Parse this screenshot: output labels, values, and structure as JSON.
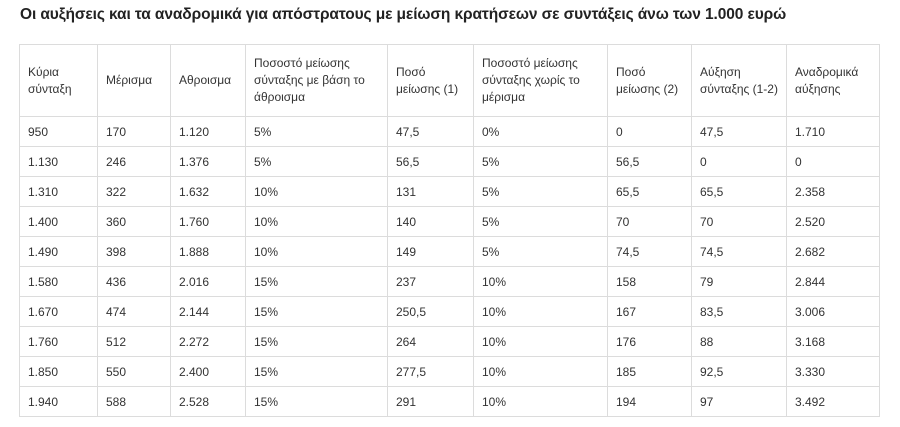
{
  "title": "Οι αυξήσεις και τα αναδρομικά για απόστρατους με μείωση κρατήσεων σε συντάξεις άνω των 1.000 ευρώ",
  "table": {
    "headers": [
      "Κύρια σύνταξη",
      "Μέρισμα",
      "Αθροισμα",
      "Ποσοστό μείωσης σύνταξης με βάση το άθροισμα",
      "Ποσό μείωσης (1)",
      "Ποσοστό μείωσης σύνταξης χωρίς το μέρισμα",
      "Ποσό μείωσης (2)",
      "Αύξηση σύνταξης (1-2)",
      "Αναδρομικά αύξησης"
    ],
    "rows": [
      [
        "950",
        "170",
        "1.120",
        "5%",
        "47,5",
        "0%",
        "0",
        "47,5",
        "1.710"
      ],
      [
        "1.130",
        "246",
        "1.376",
        "5%",
        "56,5",
        "5%",
        "56,5",
        "0",
        "0"
      ],
      [
        "1.310",
        "322",
        "1.632",
        "10%",
        "131",
        "5%",
        "65,5",
        "65,5",
        "2.358"
      ],
      [
        "1.400",
        "360",
        "1.760",
        "10%",
        "140",
        "5%",
        "70",
        "70",
        "2.520"
      ],
      [
        "1.490",
        "398",
        "1.888",
        "10%",
        "149",
        "5%",
        "74,5",
        "74,5",
        "2.682"
      ],
      [
        "1.580",
        "436",
        "2.016",
        "15%",
        "237",
        "10%",
        "158",
        "79",
        "2.844"
      ],
      [
        "1.670",
        "474",
        "2.144",
        "15%",
        "250,5",
        "10%",
        "167",
        "83,5",
        "3.006"
      ],
      [
        "1.760",
        "512",
        "2.272",
        "15%",
        "264",
        "10%",
        "176",
        "88",
        "3.168"
      ],
      [
        "1.850",
        "550",
        "2.400",
        "15%",
        "277,5",
        "10%",
        "185",
        "92,5",
        "3.330"
      ],
      [
        "1.940",
        "588",
        "2.528",
        "15%",
        "291",
        "10%",
        "194",
        "97",
        "3.492"
      ]
    ]
  }
}
